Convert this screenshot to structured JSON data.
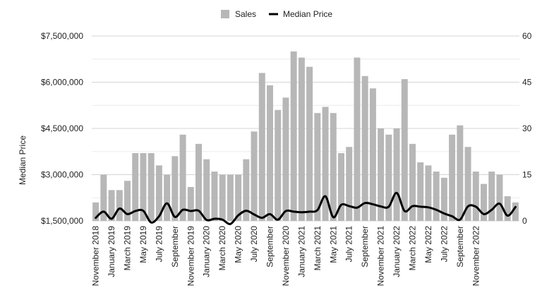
{
  "chart_data": {
    "type": "bar",
    "x_tick_labels": [
      "November 2018",
      "January 2019",
      "March 2019",
      "May 2019",
      "July 2019",
      "September",
      "November 2019",
      "January 2020",
      "March 2020",
      "May 2020",
      "July 2020",
      "September",
      "November 2020",
      "January 2021",
      "March 2021",
      "May 2021",
      "July 2021",
      "September",
      "November 2021",
      "January 2022",
      "March 2022",
      "May 2022",
      "July 2022",
      "September",
      "November 2022"
    ],
    "ylabel": "Median Price",
    "left_axis": {
      "ylim": [
        1500000,
        7500000
      ],
      "ticks": [
        "$1,500,000",
        "$3,000,000",
        "$4,500,000",
        "$6,000,000",
        "$7,500,000"
      ]
    },
    "right_axis": {
      "ylim": [
        0,
        60
      ],
      "ticks": [
        "0",
        "15",
        "30",
        "45",
        "60"
      ]
    },
    "legend": {
      "position": "top",
      "items": [
        {
          "name": "Sales",
          "swatch": "square"
        },
        {
          "name": "Median Price",
          "swatch": "line"
        }
      ]
    },
    "grid": true,
    "series": [
      {
        "name": "Sales",
        "type": "bar",
        "axis": "right",
        "color": "#b7b7b7",
        "values": [
          6,
          15,
          10,
          10,
          13,
          22,
          22,
          22,
          18,
          15,
          21,
          28,
          11,
          25,
          20,
          16,
          15,
          15,
          15,
          20,
          29,
          48,
          44,
          36,
          40,
          55,
          53,
          50,
          35,
          37,
          35,
          22,
          24,
          53,
          47,
          43,
          30,
          28,
          30,
          46,
          25,
          19,
          18,
          16,
          14,
          28,
          31,
          24,
          16,
          12,
          16,
          15,
          8,
          6
        ]
      },
      {
        "name": "Median Price",
        "type": "line",
        "axis": "left",
        "color": "#000000",
        "values": [
          1600000,
          1800000,
          1570000,
          1900000,
          1720000,
          1820000,
          1830000,
          1450000,
          1650000,
          2070000,
          1630000,
          1860000,
          1820000,
          1830000,
          1530000,
          1570000,
          1540000,
          1400000,
          1680000,
          1830000,
          1710000,
          1600000,
          1720000,
          1540000,
          1820000,
          1800000,
          1780000,
          1800000,
          1850000,
          2300000,
          1620000,
          2020000,
          1980000,
          1930000,
          2080000,
          2040000,
          1970000,
          1960000,
          2410000,
          1820000,
          1980000,
          1960000,
          1940000,
          1860000,
          1740000,
          1650000,
          1540000,
          1970000,
          1960000,
          1720000,
          1860000,
          2060000,
          1670000,
          1950000
        ]
      }
    ]
  }
}
